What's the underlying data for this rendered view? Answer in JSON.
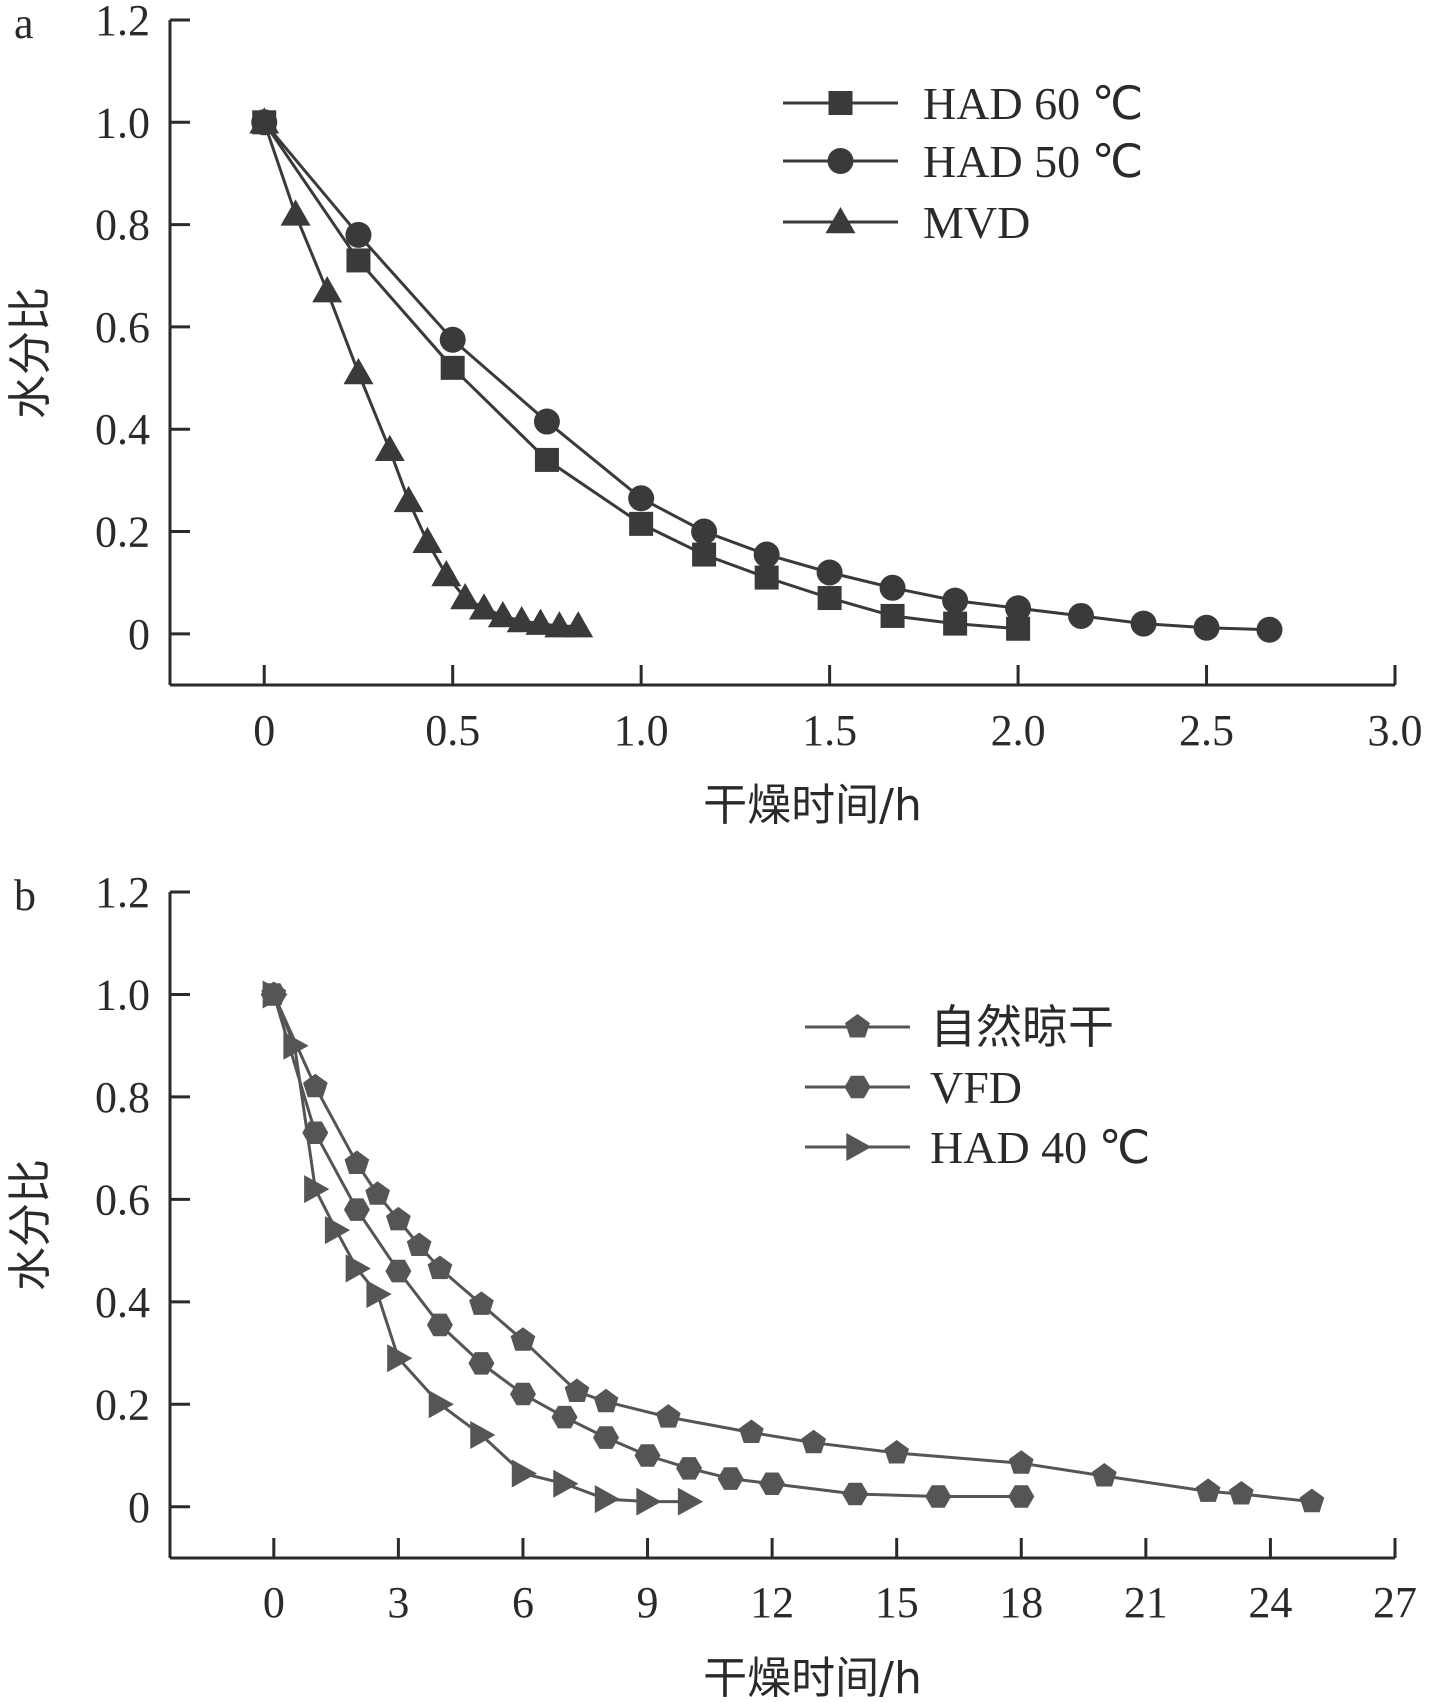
{
  "chart_data": [
    {
      "type": "line",
      "panel_label": "a",
      "xlabel": "干燥时间/h",
      "ylabel": "水分比",
      "xlim": [
        -0.25,
        3.0
      ],
      "ylim": [
        -0.1,
        1.2
      ],
      "xticks": [
        0,
        0.5,
        1.0,
        1.5,
        2.0,
        2.5,
        3.0
      ],
      "xtick_labels": [
        "0",
        "0.5",
        "1.0",
        "1.5",
        "2.0",
        "2.5",
        "3.0"
      ],
      "yticks": [
        0,
        0.2,
        0.4,
        0.6,
        0.8,
        1.0,
        1.2
      ],
      "ytick_labels": [
        "0",
        "0.2",
        "0.4",
        "0.6",
        "0.8",
        "1.0",
        "1.2"
      ],
      "legend_position": "top-right",
      "grid": false,
      "series": [
        {
          "name": "HAD 60 ℃",
          "marker": "square",
          "color": "#3a3a3a",
          "x": [
            0,
            0.25,
            0.5,
            0.75,
            1.0,
            1.167,
            1.333,
            1.5,
            1.667,
            1.833,
            2.0
          ],
          "y": [
            1.0,
            0.73,
            0.52,
            0.34,
            0.215,
            0.155,
            0.11,
            0.07,
            0.035,
            0.02,
            0.01
          ]
        },
        {
          "name": "HAD 50 ℃",
          "marker": "circle",
          "color": "#3a3a3a",
          "x": [
            0,
            0.25,
            0.5,
            0.75,
            1.0,
            1.167,
            1.333,
            1.5,
            1.667,
            1.833,
            2.0,
            2.167,
            2.333,
            2.5,
            2.667
          ],
          "y": [
            1.0,
            0.78,
            0.575,
            0.415,
            0.265,
            0.2,
            0.155,
            0.12,
            0.09,
            0.065,
            0.05,
            0.035,
            0.02,
            0.012,
            0.008
          ]
        },
        {
          "name": "MVD",
          "marker": "triangle-up",
          "color": "#3a3a3a",
          "x": [
            0,
            0.083,
            0.167,
            0.25,
            0.333,
            0.383,
            0.433,
            0.483,
            0.533,
            0.583,
            0.633,
            0.683,
            0.733,
            0.783,
            0.833
          ],
          "y": [
            1.0,
            0.82,
            0.67,
            0.51,
            0.36,
            0.26,
            0.18,
            0.115,
            0.07,
            0.05,
            0.035,
            0.025,
            0.02,
            0.015,
            0.015
          ]
        }
      ]
    },
    {
      "type": "line",
      "panel_label": "b",
      "xlabel": "干燥时间/h",
      "ylabel": "水分比",
      "xlim": [
        -2.5,
        27
      ],
      "ylim": [
        -0.1,
        1.2
      ],
      "xticks": [
        0,
        3,
        6,
        9,
        12,
        15,
        18,
        21,
        24,
        27
      ],
      "xtick_labels": [
        "0",
        "3",
        "6",
        "9",
        "12",
        "15",
        "18",
        "21",
        "24",
        "27"
      ],
      "yticks": [
        0,
        0.2,
        0.4,
        0.6,
        0.8,
        1.0,
        1.2
      ],
      "ytick_labels": [
        "0",
        "0.2",
        "0.4",
        "0.6",
        "0.8",
        "1.0",
        "1.2"
      ],
      "legend_position": "top-right",
      "grid": false,
      "series": [
        {
          "name": "自然晾干",
          "marker": "pentagon",
          "color": "#555555",
          "x": [
            0,
            1,
            2,
            2.5,
            3,
            3.5,
            4,
            5,
            6,
            7.3,
            8,
            9.5,
            11.5,
            13,
            15,
            18,
            20,
            22.5,
            23.3,
            25
          ],
          "y": [
            1.0,
            0.82,
            0.67,
            0.61,
            0.56,
            0.51,
            0.465,
            0.395,
            0.325,
            0.225,
            0.205,
            0.175,
            0.145,
            0.125,
            0.105,
            0.085,
            0.06,
            0.03,
            0.025,
            0.01
          ]
        },
        {
          "name": "VFD",
          "marker": "hexagon",
          "color": "#555555",
          "x": [
            0,
            1,
            2,
            3,
            4,
            5,
            6,
            7,
            8,
            9,
            10,
            11,
            12,
            14,
            16,
            18
          ],
          "y": [
            1.0,
            0.73,
            0.58,
            0.46,
            0.355,
            0.28,
            0.22,
            0.175,
            0.135,
            0.1,
            0.075,
            0.055,
            0.045,
            0.025,
            0.02,
            0.02
          ]
        },
        {
          "name": "HAD 40 ℃",
          "marker": "triangle-right",
          "color": "#555555",
          "x": [
            0,
            0.5,
            1,
            1.5,
            2,
            2.5,
            3,
            4,
            5,
            6,
            7,
            8,
            9,
            10
          ],
          "y": [
            1.0,
            0.9,
            0.62,
            0.54,
            0.465,
            0.415,
            0.29,
            0.2,
            0.14,
            0.065,
            0.045,
            0.015,
            0.01,
            0.01
          ]
        }
      ]
    }
  ]
}
